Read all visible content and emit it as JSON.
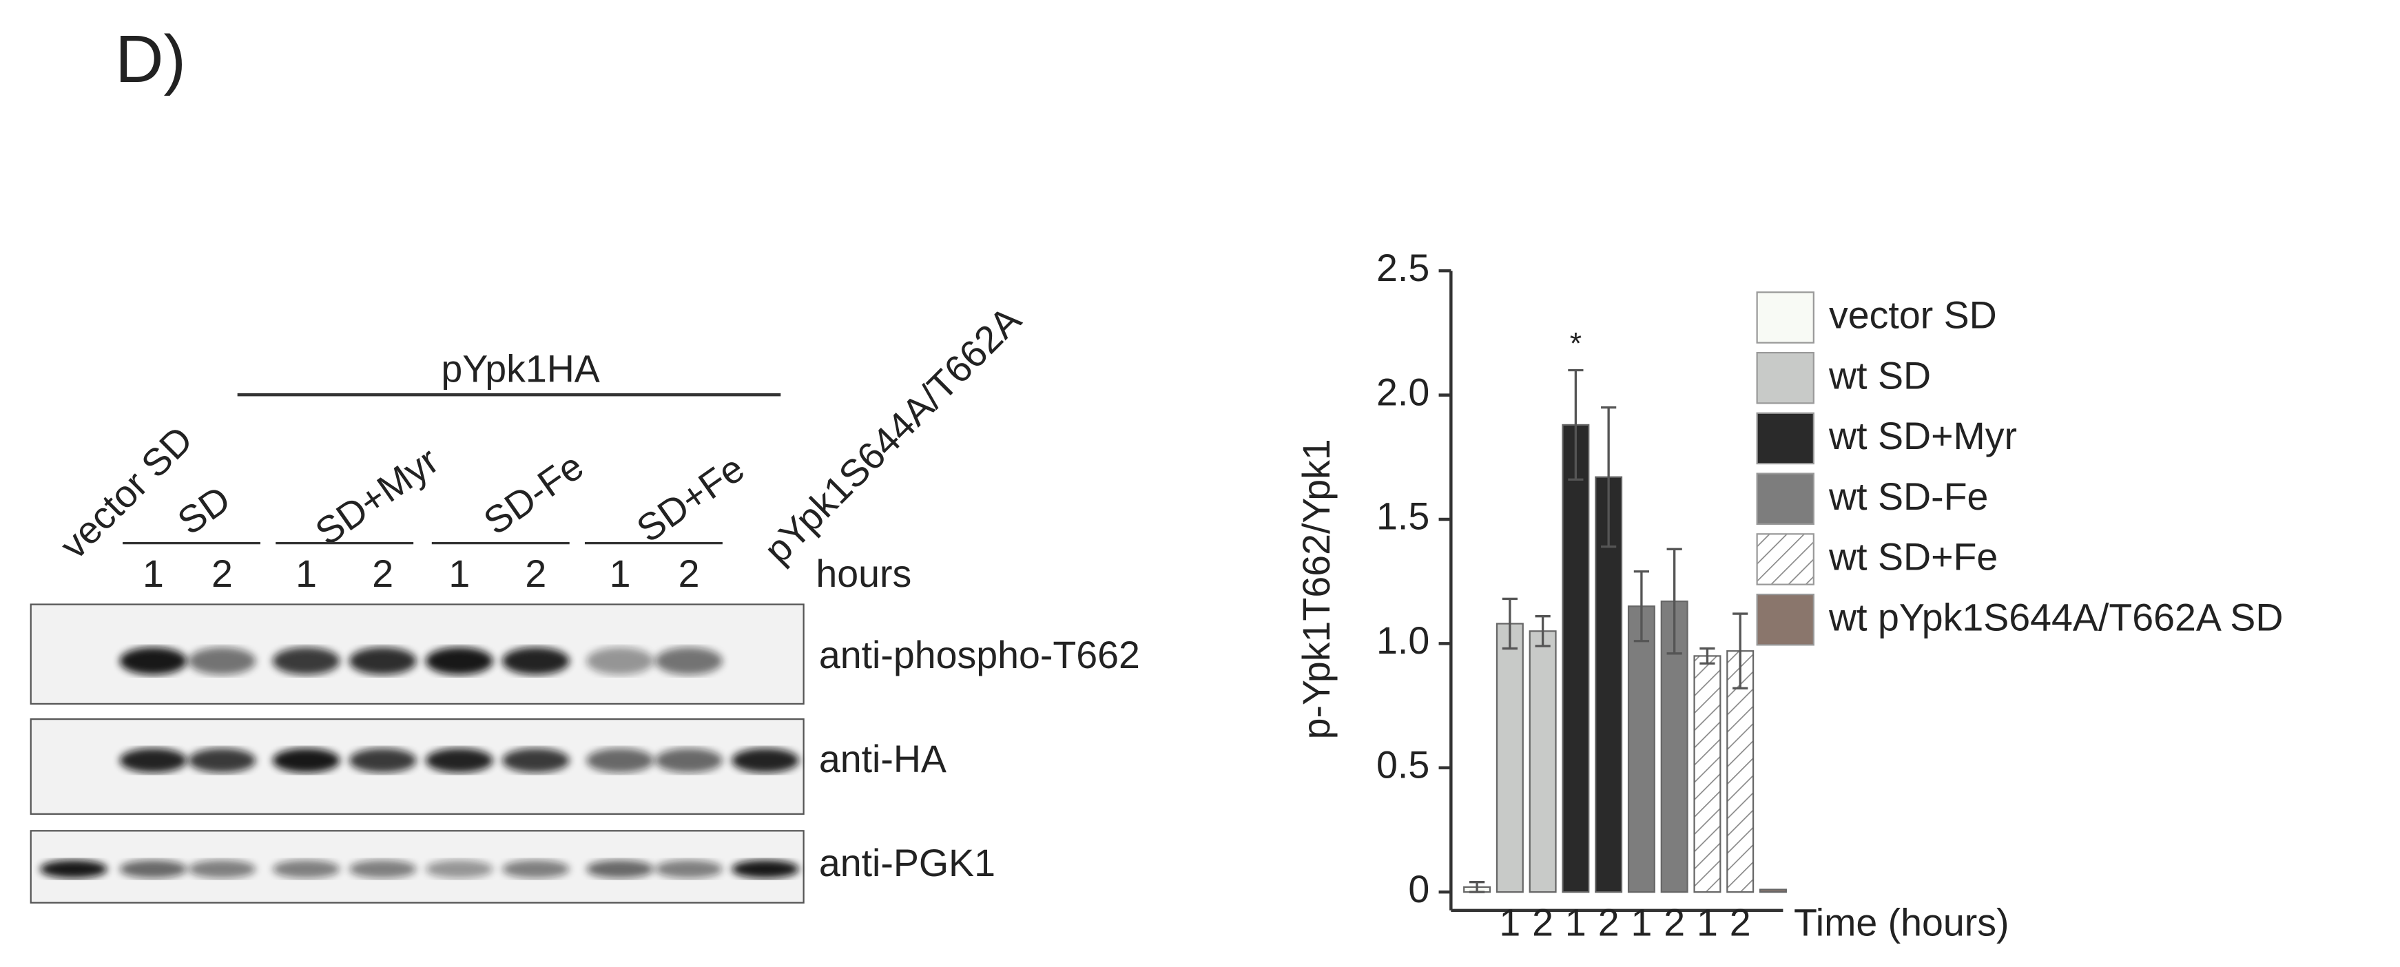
{
  "panel_label": "D)",
  "blot": {
    "group_label": "pYpk1HA",
    "conditions": [
      "vector SD",
      "SD",
      "SD+Myr",
      "SD-Fe",
      "SD+Fe",
      "pYpk1S644A/T662A"
    ],
    "lane_labels": [
      "1",
      "2",
      "1",
      "2",
      "1",
      "2",
      "1",
      "2"
    ],
    "time_label": "hours",
    "antibodies": [
      "anti-phospho-T662",
      "anti-HA",
      "anti-PGK1"
    ]
  },
  "chart_data": {
    "type": "bar",
    "ylabel": "p-Ypk1T662/Ypk1",
    "xlabel": "Time (hours)",
    "significance_marker": "*",
    "categories": [
      null,
      "1",
      "2",
      "1",
      "2",
      "1",
      "2",
      "1",
      "2",
      null
    ],
    "ylim": [
      0,
      2.5
    ],
    "yticks": [
      0,
      0.5,
      {
        "value": 1,
        "label": "1.0"
      },
      1.5,
      {
        "value": 2,
        "label": "2.0"
      },
      2.5
    ],
    "series": [
      {
        "name": "vector SD",
        "color": "#f8faf5",
        "values": [
          0.02,
          null,
          null,
          null,
          null,
          null,
          null,
          null,
          null,
          null
        ],
        "errors": [
          0.02,
          null,
          null,
          null,
          null,
          null,
          null,
          null,
          null,
          null
        ]
      },
      {
        "name": "wt SD",
        "color": "#c8cac8",
        "values": [
          null,
          1.08,
          1.05,
          null,
          null,
          null,
          null,
          null,
          null,
          null
        ],
        "errors": [
          null,
          0.1,
          0.06,
          null,
          null,
          null,
          null,
          null,
          null,
          null
        ]
      },
      {
        "name": "wt SD+Myr",
        "color": "#2a2a2a",
        "values": [
          null,
          null,
          null,
          1.88,
          1.67,
          null,
          null,
          null,
          null,
          null
        ],
        "errors": [
          null,
          null,
          null,
          0.22,
          0.28,
          null,
          null,
          null,
          null,
          null
        ]
      },
      {
        "name": "wt SD-Fe",
        "color": "#7d7d7d",
        "values": [
          null,
          null,
          null,
          null,
          null,
          1.15,
          1.17,
          null,
          null,
          null
        ],
        "errors": [
          null,
          null,
          null,
          null,
          null,
          0.14,
          0.21,
          null,
          null,
          null
        ]
      },
      {
        "name": "wt SD+Fe",
        "color": "#ffffff",
        "pattern": "hatch",
        "values": [
          null,
          null,
          null,
          null,
          null,
          null,
          null,
          0.95,
          0.97,
          null
        ],
        "errors": [
          null,
          null,
          null,
          null,
          null,
          null,
          null,
          0.03,
          0.15,
          null
        ]
      },
      {
        "name": "wt pYpk1S644A/T662A SD",
        "color": "#8a766c",
        "values": [
          null,
          null,
          null,
          null,
          null,
          null,
          null,
          null,
          null,
          0.01
        ],
        "errors": [
          null,
          null,
          null,
          null,
          null,
          null,
          null,
          null,
          null,
          null
        ]
      }
    ]
  }
}
